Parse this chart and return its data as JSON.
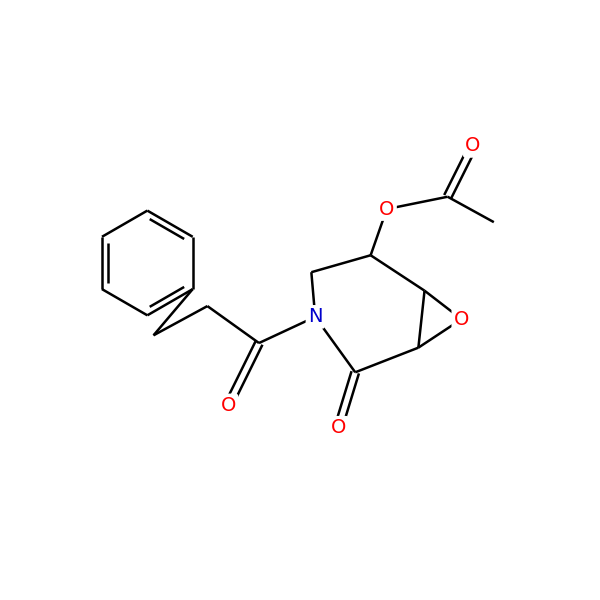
{
  "background_color": "#ffffff",
  "bond_color": "#000000",
  "O_color": "#ff0000",
  "N_color": "#0000cc",
  "font_size": 14,
  "line_width": 1.8,
  "figsize": [
    6.0,
    6.0
  ],
  "dpi": 100,
  "xlim": [
    0,
    600
  ],
  "ylim": [
    0,
    600
  ]
}
